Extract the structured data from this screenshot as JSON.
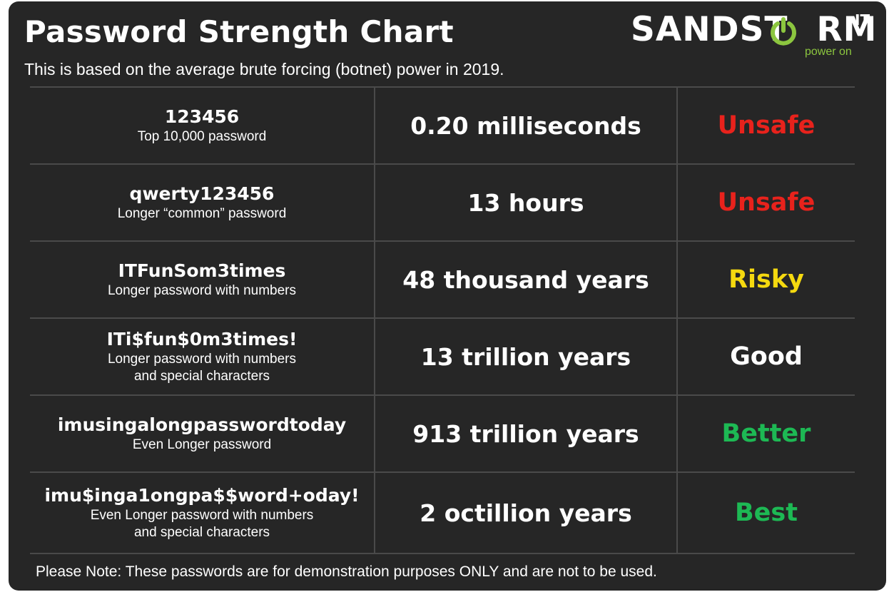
{
  "header": {
    "title": "Password Strength Chart",
    "subtitle": "This is based on the average brute forcing (botnet) power in 2019."
  },
  "logo": {
    "text_before": "SANDST",
    "text_after": "RM",
    "superscript": "IT",
    "tagline": "power on",
    "icon": "power-icon",
    "accent_color": "#8cc63f"
  },
  "chart_data": {
    "type": "table",
    "rows": [
      {
        "password": "123456",
        "description": "Top 10,000 password",
        "time_to_crack": "0.20 milliseconds",
        "rating": "Unsafe",
        "rating_color": "#e8221c"
      },
      {
        "password": "qwerty123456",
        "description": "Longer “common” password",
        "time_to_crack": "13 hours",
        "rating": "Unsafe",
        "rating_color": "#e8221c"
      },
      {
        "password": "ITFunSom3times",
        "description": "Longer password with numbers",
        "time_to_crack": "48 thousand years",
        "rating": "Risky",
        "rating_color": "#f5d90f"
      },
      {
        "password": "ITi$fun$0m3times!",
        "description": "Longer password with numbers\nand special characters",
        "time_to_crack": "13 trillion years",
        "rating": "Good",
        "rating_color": "#ffffff"
      },
      {
        "password": "imusingalongpasswordtoday",
        "description": "Even Longer password",
        "time_to_crack": "913 trillion years",
        "rating": "Better",
        "rating_color": "#1db954"
      },
      {
        "password": "imu$inga1ongpa$$word+oday!",
        "description": "Even Longer password with numbers\nand special characters",
        "time_to_crack": "2 octillion years",
        "rating": "Best",
        "rating_color": "#1db954"
      }
    ]
  },
  "footer": {
    "note": "Please Note: These passwords are for demonstration purposes ONLY and are not to be used."
  }
}
